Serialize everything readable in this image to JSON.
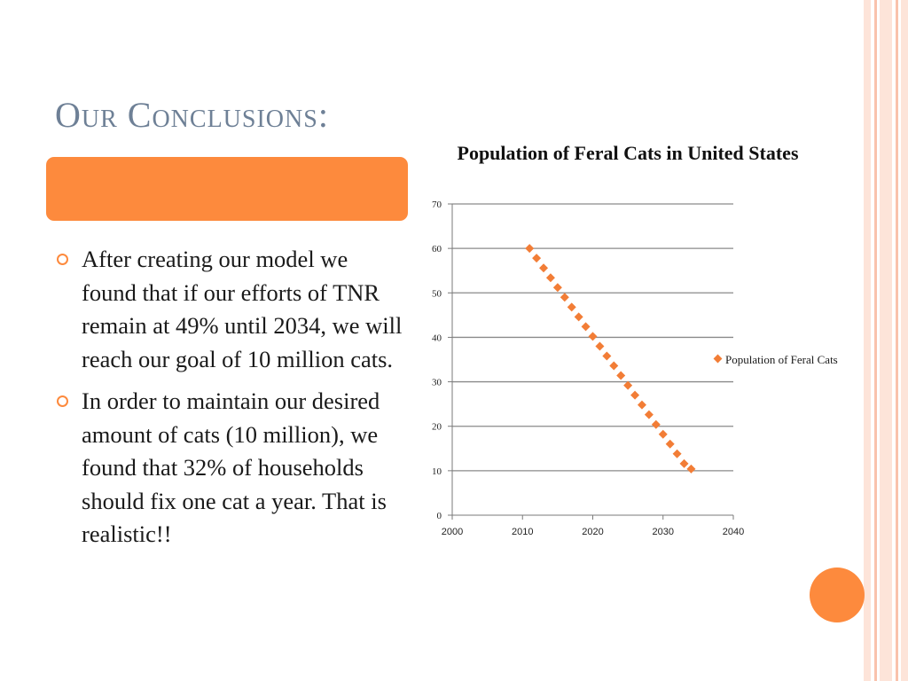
{
  "slide": {
    "title": "Our Conclusions:",
    "bullets": [
      "After creating our model we found that if our efforts of TNR remain at 49% until 2034, we will reach our goal of 10 million cats.",
      "In order to maintain our desired amount of cats (10 million), we found that 32% of households should fix one cat a year. That is realistic!!"
    ]
  },
  "colors": {
    "accent": "#fd8a3d",
    "title": "#6e8096",
    "stripe_light": "#fde4d9",
    "stripe_mid": "#f9c2ac",
    "marker": "#f27d36"
  },
  "chart_data": {
    "type": "scatter",
    "title": "Population of Feral Cats in United States",
    "xlabel": "",
    "ylabel": "",
    "xlim": [
      2000,
      2040
    ],
    "ylim": [
      0,
      70
    ],
    "xticks": [
      2000,
      2010,
      2020,
      2030,
      2040
    ],
    "yticks": [
      0,
      10,
      20,
      30,
      40,
      50,
      60,
      70
    ],
    "grid": "horizontal",
    "legend_position": "right",
    "series": [
      {
        "name": "Population of Feral Cats",
        "x": [
          2011,
          2012,
          2013,
          2014,
          2015,
          2016,
          2017,
          2018,
          2019,
          2020,
          2021,
          2022,
          2023,
          2024,
          2025,
          2026,
          2027,
          2028,
          2029,
          2030,
          2031,
          2032,
          2033,
          2034
        ],
        "y": [
          60,
          57.8,
          55.6,
          53.4,
          51.2,
          49,
          46.8,
          44.6,
          42.4,
          40.2,
          38,
          35.8,
          33.6,
          31.4,
          29.2,
          27,
          24.8,
          22.6,
          20.4,
          18.2,
          16,
          13.8,
          11.6,
          10.4
        ]
      }
    ]
  }
}
